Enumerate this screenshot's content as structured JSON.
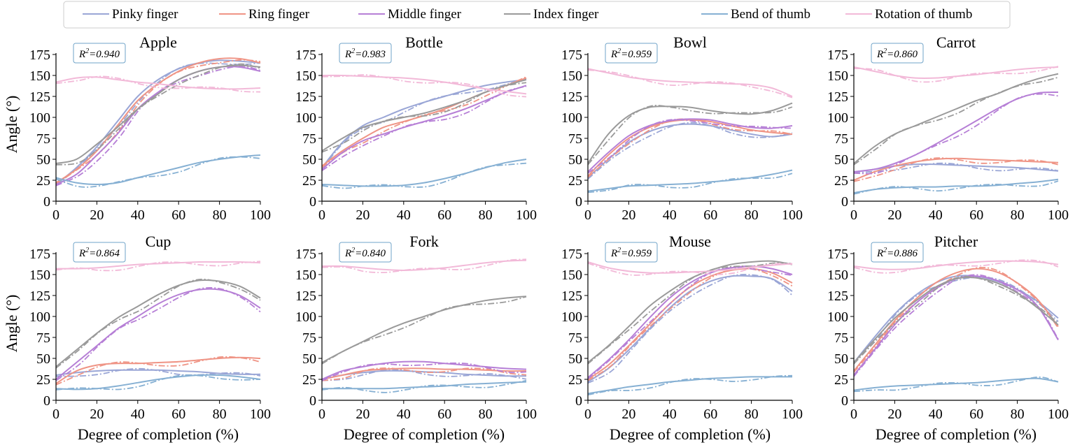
{
  "chart_data": {
    "type": "line",
    "figure_layout": "2 rows x 4 columns of line plots",
    "x_label": "Degree of completion (%)",
    "y_label": "Angle (°)",
    "xlim": [
      0,
      100
    ],
    "ylim": [
      0,
      175
    ],
    "x_ticks": [
      0,
      20,
      40,
      60,
      80,
      100
    ],
    "y_ticks": [
      0,
      25,
      50,
      75,
      100,
      125,
      150,
      175
    ],
    "line_styles": {
      "solid": "measured",
      "dashdot": "fitted"
    },
    "x_samples": [
      0,
      10,
      20,
      30,
      40,
      50,
      60,
      70,
      80,
      90,
      100
    ],
    "legend": {
      "placement": "top",
      "entries": [
        {
          "key": "pinky",
          "label": "Pinky finger",
          "color": "#9aa6d6"
        },
        {
          "key": "ring",
          "label": "Ring finger",
          "color": "#ef9485"
        },
        {
          "key": "middle",
          "label": "Middle finger",
          "color": "#b67fd6"
        },
        {
          "key": "index",
          "label": "Index finger",
          "color": "#9a9a9a"
        },
        {
          "key": "thumb_bend",
          "label": "Bend of thumb",
          "color": "#86b0d3"
        },
        {
          "key": "thumb_rot",
          "label": "Rotation of thumb",
          "color": "#f2b9d8"
        }
      ]
    },
    "panels": [
      {
        "title": "Apple",
        "r2": "=0.940",
        "series": {
          "pinky": [
            20,
            40,
            65,
            95,
            125,
            145,
            158,
            165,
            168,
            167,
            165
          ],
          "ring": [
            22,
            38,
            60,
            90,
            120,
            140,
            155,
            165,
            170,
            170,
            165
          ],
          "middle": [
            20,
            32,
            55,
            80,
            110,
            130,
            145,
            155,
            160,
            160,
            155
          ],
          "index": [
            45,
            50,
            68,
            88,
            110,
            128,
            145,
            155,
            160,
            162,
            160
          ],
          "thumb_bend": [
            28,
            22,
            20,
            22,
            28,
            34,
            40,
            46,
            50,
            53,
            55
          ],
          "thumb_rot": [
            142,
            147,
            148,
            145,
            142,
            140,
            137,
            135,
            134,
            134,
            135
          ]
        }
      },
      {
        "title": "Bottle",
        "r2": "=0.983",
        "series": {
          "pinky": [
            40,
            70,
            90,
            100,
            110,
            118,
            125,
            132,
            138,
            142,
            145
          ],
          "ring": [
            42,
            60,
            75,
            88,
            95,
            102,
            110,
            120,
            130,
            138,
            147
          ],
          "middle": [
            38,
            58,
            72,
            80,
            88,
            95,
            102,
            110,
            120,
            130,
            138
          ],
          "index": [
            60,
            75,
            88,
            95,
            100,
            105,
            112,
            120,
            130,
            138,
            145
          ],
          "thumb_bend": [
            20,
            19,
            18,
            18,
            19,
            22,
            27,
            33,
            40,
            46,
            50
          ],
          "thumb_rot": [
            150,
            150,
            149,
            148,
            147,
            145,
            142,
            138,
            134,
            131,
            128
          ]
        }
      },
      {
        "title": "Bowl",
        "r2": "=0.959",
        "series": {
          "pinky": [
            28,
            50,
            70,
            83,
            90,
            92,
            90,
            85,
            80,
            77,
            80
          ],
          "ring": [
            30,
            55,
            75,
            88,
            95,
            97,
            95,
            90,
            85,
            82,
            80
          ],
          "middle": [
            35,
            58,
            78,
            90,
            96,
            98,
            97,
            92,
            88,
            87,
            90
          ],
          "index": [
            45,
            80,
            102,
            112,
            113,
            112,
            108,
            105,
            104,
            108,
            117
          ],
          "thumb_bend": [
            12,
            15,
            18,
            19,
            20,
            21,
            23,
            25,
            28,
            32,
            37
          ],
          "thumb_rot": [
            158,
            153,
            148,
            145,
            143,
            142,
            141,
            140,
            139,
            135,
            125
          ]
        }
      },
      {
        "title": "Carrot",
        "r2": "=0.860",
        "series": {
          "pinky": [
            35,
            38,
            42,
            44,
            44,
            43,
            42,
            41,
            40,
            38,
            36
          ],
          "ring": [
            25,
            35,
            42,
            47,
            50,
            51,
            50,
            49,
            48,
            47,
            46
          ],
          "middle": [
            35,
            38,
            45,
            55,
            68,
            82,
            96,
            110,
            122,
            129,
            130
          ],
          "index": [
            45,
            65,
            80,
            90,
            100,
            110,
            120,
            128,
            138,
            146,
            152
          ],
          "thumb_bend": [
            10,
            14,
            16,
            17,
            17,
            18,
            18,
            19,
            21,
            23,
            26
          ],
          "thumb_rot": [
            160,
            155,
            150,
            147,
            147,
            149,
            151,
            154,
            157,
            159,
            160
          ]
        }
      },
      {
        "title": "Cup",
        "r2": "=0.864",
        "series": {
          "pinky": [
            30,
            33,
            35,
            36,
            36,
            36,
            35,
            34,
            32,
            31,
            31
          ],
          "ring": [
            20,
            35,
            42,
            44,
            44,
            45,
            46,
            48,
            50,
            51,
            50
          ],
          "middle": [
            25,
            45,
            65,
            85,
            100,
            115,
            126,
            132,
            132,
            125,
            110
          ],
          "index": [
            40,
            60,
            80,
            98,
            112,
            126,
            137,
            143,
            142,
            136,
            122
          ],
          "thumb_bend": [
            14,
            13,
            14,
            17,
            21,
            25,
            28,
            30,
            30,
            28,
            25
          ],
          "thumb_rot": [
            157,
            157,
            158,
            160,
            162,
            163,
            164,
            165,
            165,
            165,
            164
          ]
        }
      },
      {
        "title": "Fork",
        "r2": "=0.840",
        "series": {
          "pinky": [
            25,
            30,
            33,
            35,
            35,
            34,
            33,
            31,
            30,
            29,
            29
          ],
          "ring": [
            25,
            30,
            35,
            37,
            38,
            38,
            37,
            37,
            36,
            35,
            35
          ],
          "middle": [
            25,
            35,
            40,
            44,
            46,
            46,
            44,
            42,
            40,
            38,
            37
          ],
          "index": [
            45,
            58,
            70,
            82,
            92,
            100,
            108,
            114,
            119,
            122,
            124
          ],
          "thumb_bend": [
            14,
            14,
            14,
            14,
            15,
            16,
            17,
            19,
            20,
            21,
            22
          ],
          "thumb_rot": [
            160,
            160,
            158,
            156,
            155,
            156,
            158,
            161,
            164,
            166,
            167
          ]
        }
      },
      {
        "title": "Mouse",
        "r2": "=0.959",
        "series": {
          "pinky": [
            22,
            38,
            60,
            85,
            110,
            130,
            142,
            148,
            148,
            145,
            130
          ],
          "ring": [
            25,
            42,
            65,
            90,
            115,
            135,
            148,
            155,
            157,
            152,
            140
          ],
          "middle": [
            27,
            48,
            72,
            98,
            122,
            140,
            152,
            158,
            160,
            157,
            150
          ],
          "index": [
            45,
            65,
            88,
            112,
            130,
            145,
            155,
            162,
            165,
            166,
            162
          ],
          "thumb_bend": [
            8,
            12,
            16,
            19,
            22,
            24,
            26,
            27,
            28,
            28,
            28
          ],
          "thumb_rot": [
            165,
            158,
            154,
            152,
            152,
            153,
            154,
            156,
            159,
            161,
            163
          ]
        }
      },
      {
        "title": "Pitcher",
        "r2": "=0.886",
        "series": {
          "pinky": [
            45,
            75,
            103,
            125,
            140,
            148,
            148,
            142,
            132,
            118,
            98
          ],
          "ring": [
            35,
            65,
            95,
            120,
            140,
            152,
            157,
            153,
            140,
            120,
            88
          ],
          "middle": [
            30,
            60,
            90,
            115,
            133,
            145,
            148,
            143,
            132,
            112,
            72
          ],
          "index": [
            45,
            72,
            98,
            118,
            135,
            145,
            146,
            140,
            128,
            110,
            90
          ],
          "thumb_bend": [
            12,
            15,
            17,
            18,
            19,
            20,
            21,
            23,
            25,
            26,
            22
          ],
          "thumb_rot": [
            160,
            157,
            156,
            157,
            160,
            163,
            165,
            166,
            166,
            165,
            162
          ]
        }
      }
    ]
  }
}
